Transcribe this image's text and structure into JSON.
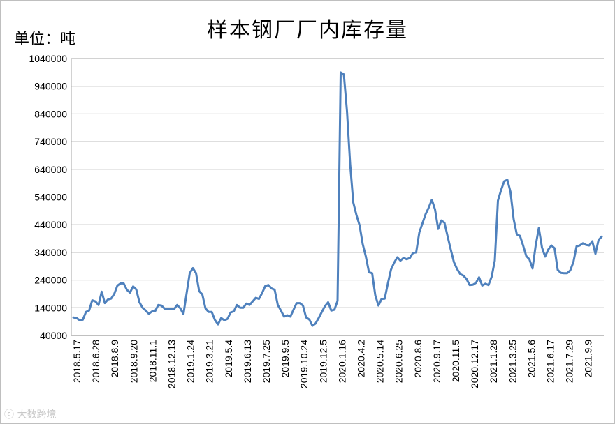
{
  "chart_data": {
    "type": "line",
    "title": "样本钢厂厂内库存量",
    "unit_label": "单位：吨",
    "ylim": [
      40000,
      1040000
    ],
    "yticks": [
      40000,
      140000,
      240000,
      340000,
      440000,
      540000,
      640000,
      740000,
      840000,
      940000,
      1040000
    ],
    "ytick_labels": [
      "40000",
      "140000",
      "240000",
      "340000",
      "440000",
      "540000",
      "640000",
      "740000",
      "840000",
      "940000",
      "1040000"
    ],
    "grid": true,
    "series_color": "#4f81bd",
    "x_tick_labels": [
      "2018.5.17",
      "2018.6.28",
      "2018.8.9",
      "2018.9.20",
      "2018.11.1",
      "2018.12.13",
      "2019.1.24",
      "2019.3.21",
      "2019.5.4",
      "2019.6.13",
      "2019.7.25",
      "2019.9.5",
      "2019.10.24",
      "2019.12.5",
      "2020.1.16",
      "2020.4.2",
      "2020.5.14",
      "2020.6.25",
      "2020.8.6",
      "2020.9.17",
      "2020.11.5",
      "2020.12.17",
      "2021.1.28",
      "2021.3.25",
      "2021.5.6",
      "2021.6.17",
      "2021.7.29",
      "2021.9.9"
    ],
    "series": [
      {
        "values": [
          105000,
          103000,
          95000,
          97000,
          125000,
          130000,
          167000,
          163000,
          150000,
          198000,
          157000,
          170000,
          173000,
          190000,
          220000,
          228000,
          228000,
          205000,
          195000,
          217000,
          206000,
          160000,
          140000,
          130000,
          118000,
          127000,
          128000,
          150000,
          148000,
          137000,
          137000,
          137000,
          135000,
          150000,
          138000,
          117000,
          192000,
          265000,
          283000,
          265000,
          200000,
          188000,
          138000,
          125000,
          125000,
          96000,
          80000,
          103000,
          95000,
          100000,
          123000,
          127000,
          150000,
          140000,
          140000,
          155000,
          150000,
          163000,
          176000,
          172000,
          193000,
          218000,
          222000,
          210000,
          205000,
          150000,
          130000,
          108000,
          113000,
          108000,
          133000,
          157000,
          157000,
          148000,
          105000,
          98000,
          75000,
          83000,
          103000,
          125000,
          146000,
          160000,
          130000,
          133000,
          165000,
          990000,
          983000,
          850000,
          660000,
          520000,
          475000,
          438000,
          370000,
          325000,
          268000,
          265000,
          185000,
          148000,
          172000,
          173000,
          228000,
          278000,
          303000,
          322000,
          310000,
          320000,
          315000,
          320000,
          338000,
          340000,
          412000,
          445000,
          478000,
          502000,
          530000,
          495000,
          425000,
          455000,
          447000,
          398000,
          350000,
          305000,
          280000,
          262000,
          256000,
          244000,
          222000,
          223000,
          230000,
          250000,
          220000,
          227000,
          222000,
          252000,
          310000,
          527000,
          565000,
          597000,
          602000,
          558000,
          460000,
          405000,
          400000,
          365000,
          327000,
          315000,
          282000,
          365000,
          428000,
          358000,
          325000,
          350000,
          365000,
          355000,
          277000,
          266000,
          265000,
          265000,
          275000,
          305000,
          362000,
          365000,
          373000,
          367000,
          365000,
          380000,
          335000,
          385000,
          397000
        ]
      }
    ]
  },
  "watermark_text": "大数跨境"
}
